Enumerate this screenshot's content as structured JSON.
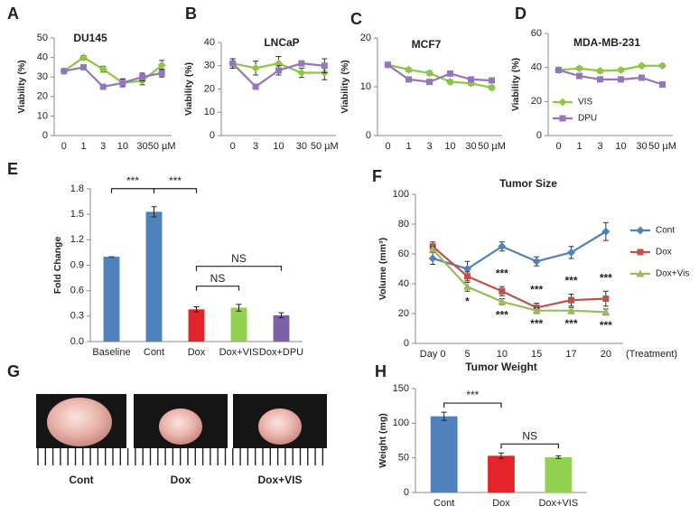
{
  "chart_data": [
    {
      "panel": "A",
      "type": "line",
      "title": "DU145",
      "ylabel": "Viability (%)",
      "categories": [
        "0",
        "1",
        "3",
        "10",
        "30",
        "50 µM"
      ],
      "ylim": [
        0,
        50
      ],
      "yticks": [
        0,
        10,
        20,
        30,
        40,
        50
      ],
      "series": [
        {
          "name": "VIS",
          "color": "#8dc63f",
          "marker": "diamond",
          "values": [
            33,
            40,
            34,
            27,
            28,
            36
          ],
          "errors": [
            1,
            1,
            1.5,
            2,
            2,
            2.5
          ]
        },
        {
          "name": "DPU",
          "color": "#9475bf",
          "marker": "square",
          "values": [
            33,
            35,
            25,
            27,
            30,
            32
          ],
          "errors": [
            1,
            1,
            1,
            2,
            2,
            2
          ]
        }
      ]
    },
    {
      "panel": "B",
      "type": "line",
      "title": "LNCaP",
      "ylabel": "Viability (%)",
      "categories": [
        "0",
        "3",
        "10",
        "30",
        "50 µM"
      ],
      "ylim": [
        0,
        40
      ],
      "yticks": [
        0,
        10,
        20,
        30,
        40
      ],
      "series": [
        {
          "name": "VIS",
          "color": "#8dc63f",
          "marker": "diamond",
          "values": [
            31,
            29,
            31,
            27,
            27
          ],
          "errors": [
            2,
            3,
            3,
            2,
            3
          ]
        },
        {
          "name": "DPU",
          "color": "#9475bf",
          "marker": "square",
          "values": [
            31,
            21,
            28,
            31,
            30
          ],
          "errors": [
            2,
            1,
            2,
            1,
            3
          ]
        }
      ]
    },
    {
      "panel": "C",
      "type": "line",
      "title": "MCF7",
      "ylabel": "Viability (%)",
      "categories": [
        "0",
        "1",
        "3",
        "10",
        "30",
        "50 µM"
      ],
      "ylim": [
        0,
        20
      ],
      "yticks": [
        0,
        10,
        20
      ],
      "series": [
        {
          "name": "VIS",
          "color": "#8dc63f",
          "marker": "diamond",
          "values": [
            14.5,
            13.5,
            12.8,
            11,
            10.7,
            9.8
          ],
          "errors": [
            0.4,
            0.4,
            0.4,
            0.4,
            0.4,
            0.4
          ]
        },
        {
          "name": "DPU",
          "color": "#9475bf",
          "marker": "square",
          "values": [
            14.5,
            11.5,
            11,
            12.7,
            11.5,
            11.3
          ],
          "errors": [
            0.4,
            0.4,
            0.4,
            0.4,
            0.4,
            0.4
          ]
        }
      ]
    },
    {
      "panel": "D",
      "type": "line",
      "title": "MDA-MB-231",
      "ylabel": "Viability (%)",
      "categories": [
        "0",
        "1",
        "3",
        "10",
        "30",
        "50 µM"
      ],
      "ylim": [
        0,
        60
      ],
      "yticks": [
        0,
        20,
        40,
        60
      ],
      "legend": "lower left",
      "series": [
        {
          "name": "VIS",
          "color": "#8dc63f",
          "marker": "diamond",
          "values": [
            38.5,
            39.5,
            38,
            38.5,
            41,
            41
          ],
          "errors": [
            1,
            1,
            1,
            1,
            1,
            1
          ]
        },
        {
          "name": "DPU",
          "color": "#9475bf",
          "marker": "square",
          "values": [
            38.5,
            35,
            33,
            33,
            34,
            30
          ],
          "errors": [
            1,
            1,
            1,
            1,
            1,
            1
          ]
        }
      ]
    },
    {
      "panel": "E",
      "type": "bar",
      "ylabel": "Fold Change",
      "categories": [
        "Baseline",
        "Cont",
        "Dox",
        "Dox+VIS",
        "Dox+DPU"
      ],
      "values": [
        1.0,
        1.53,
        0.38,
        0.4,
        0.31
      ],
      "errors": [
        0,
        0.06,
        0.03,
        0.04,
        0.03
      ],
      "colors": [
        "#4f81bd",
        "#4f81bd",
        "#e3242b",
        "#92d050",
        "#7f5fa8"
      ],
      "ylim": [
        0,
        1.8
      ],
      "yticks": [
        {
          "value": 0,
          "label": "0.0"
        },
        0.3,
        0.6,
        0.9,
        1.2,
        1.5,
        1.8
      ],
      "brackets": [
        {
          "text": "***",
          "between": [
            "Baseline",
            "Cont"
          ]
        },
        {
          "text": "***",
          "between": [
            "Cont",
            "Dox"
          ]
        },
        {
          "text": "NS",
          "between": [
            "Dox",
            "Dox+VIS"
          ]
        },
        {
          "text": "NS",
          "between": [
            "Dox",
            "Dox+DPU"
          ]
        }
      ]
    },
    {
      "panel": "F",
      "type": "line",
      "title": "Tumor Size",
      "ylabel": "Volume (mm³)",
      "xlabel": "(Treatment)",
      "categories": [
        "Day 0",
        "5",
        "10",
        "15",
        "17",
        "20"
      ],
      "ylim": [
        0,
        100
      ],
      "yticks": [
        0,
        20,
        40,
        60,
        80,
        100
      ],
      "legend": "right",
      "series": [
        {
          "name": "Cont",
          "color": "#4f81bd",
          "marker": "diamond",
          "values": [
            57,
            50,
            65,
            55,
            61,
            75
          ],
          "errors": [
            4,
            5,
            3,
            3,
            4,
            6
          ]
        },
        {
          "name": "Dox",
          "color": "#c0504d",
          "marker": "square",
          "values": [
            65,
            45,
            35,
            24,
            29,
            30
          ],
          "errors": [
            3,
            3,
            3,
            3,
            4,
            5
          ]
        },
        {
          "name": "Dox+Vis",
          "color": "#9bbb59",
          "marker": "triangle",
          "values": [
            63,
            38,
            28,
            22,
            22,
            21
          ],
          "errors": [
            2,
            3,
            2,
            2,
            2,
            2
          ]
        }
      ],
      "annotations": [
        {
          "text": "*",
          "at": "5",
          "series": "Dox+Vis",
          "side": "below"
        },
        {
          "text": "***",
          "at": "10",
          "series": "Dox",
          "side": "above"
        },
        {
          "text": "***",
          "at": "10",
          "series": "Dox+Vis",
          "side": "below"
        },
        {
          "text": "***",
          "at": "15",
          "series": "Dox",
          "side": "above"
        },
        {
          "text": "***",
          "at": "15",
          "series": "Dox+Vis",
          "side": "below"
        },
        {
          "text": "***",
          "at": "17",
          "series": "Dox",
          "side": "above"
        },
        {
          "text": "***",
          "at": "17",
          "series": "Dox+Vis",
          "side": "below"
        },
        {
          "text": "***",
          "at": "20",
          "series": "Dox",
          "side": "above"
        },
        {
          "text": "***",
          "at": "20",
          "series": "Dox+Vis",
          "side": "below"
        }
      ]
    },
    {
      "panel": "H",
      "type": "bar",
      "title": "Tumor Weight",
      "ylabel": "Weight (mg)",
      "categories": [
        "Cont",
        "Dox",
        "Dox+VIS"
      ],
      "values": [
        110,
        53,
        51
      ],
      "errors": [
        6,
        4,
        2
      ],
      "colors": [
        "#4f81bd",
        "#e3242b",
        "#92d050"
      ],
      "ylim": [
        0,
        150
      ],
      "yticks": [
        0,
        50,
        100,
        150
      ],
      "brackets": [
        {
          "text": "***",
          "between": [
            "Cont",
            "Dox"
          ]
        },
        {
          "text": "NS",
          "between": [
            "Dox",
            "Dox+VIS"
          ]
        }
      ]
    }
  ],
  "photo_panel": {
    "panel": "G",
    "labels": [
      "Cont",
      "Dox",
      "Dox+VIS"
    ]
  }
}
